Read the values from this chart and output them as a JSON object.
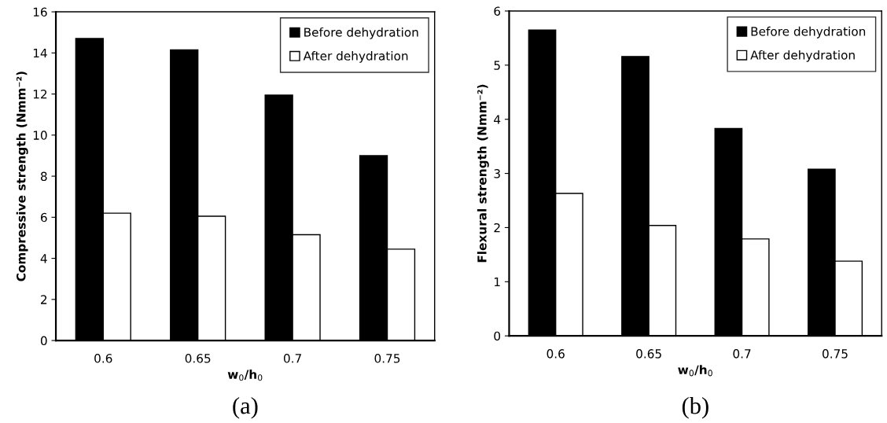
{
  "chart_data": [
    {
      "type": "bar",
      "categories": [
        "0.6",
        "0.65",
        "0.7",
        "0.75"
      ],
      "xlabel": "w$_{0}$/h$_{0}$",
      "ylabel": "Compressive strength (Nmm⁻²)",
      "ylim": [
        0,
        16
      ],
      "yticks": [
        0,
        2,
        4,
        6,
        8,
        10,
        12,
        14,
        16
      ],
      "legend": "top right",
      "grid": false,
      "annotations": [
        "(a)"
      ],
      "series": [
        {
          "name": "Before dehydration",
          "color": "#000000",
          "values": [
            14.7,
            14.15,
            11.95,
            9.0
          ]
        },
        {
          "name": "After dehydration",
          "color": "#ffffff",
          "values": [
            6.2,
            6.05,
            5.15,
            4.45
          ]
        }
      ]
    },
    {
      "type": "bar",
      "categories": [
        "0.6",
        "0.65",
        "0.7",
        "0.75"
      ],
      "xlabel": "w$_{0}$/h$_{0}$",
      "ylabel": "Flexural strength (Nmm⁻²)",
      "ylim": [
        0,
        6
      ],
      "yticks": [
        0,
        1,
        2,
        3,
        4,
        5,
        6
      ],
      "legend": "top right",
      "grid": false,
      "annotations": [
        "(b)"
      ],
      "series": [
        {
          "name": "Before dehydration",
          "color": "#000000",
          "values": [
            5.65,
            5.16,
            3.83,
            3.08
          ]
        },
        {
          "name": "After dehydration",
          "color": "#ffffff",
          "values": [
            2.63,
            2.04,
            1.79,
            1.38
          ]
        }
      ]
    }
  ]
}
